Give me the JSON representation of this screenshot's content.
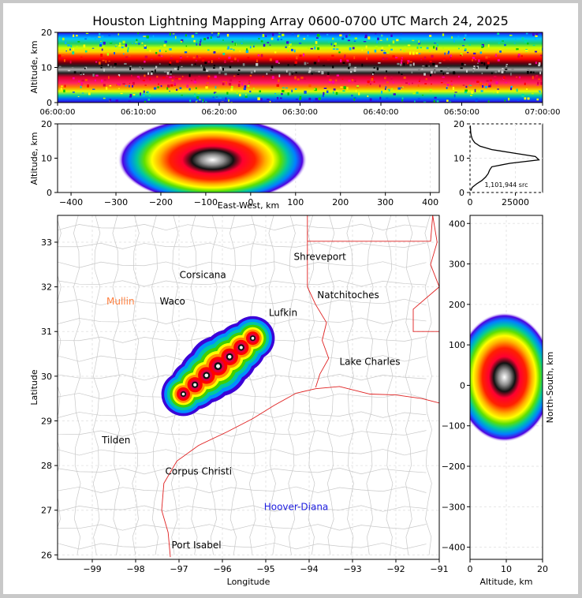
{
  "title": "Houston Lightning Mapping Array 0600-0700 UTC March 24, 2025",
  "colors": {
    "density_scale": [
      "#3b00d8",
      "#0050ff",
      "#00b4ff",
      "#00e0a0",
      "#00c800",
      "#b4ff00",
      "#ffff00",
      "#ffb400",
      "#ff5000",
      "#ff0000",
      "#e00040",
      "#ff00a0",
      "#000000",
      "#808080",
      "#c8c8c8",
      "#ffffff"
    ],
    "state_border": "#e02020",
    "county_border": "#c8c8c8",
    "frame": "#000000"
  },
  "chart_data": [
    {
      "panel": "time-height",
      "type": "heatmap",
      "ylabel": "Altitude, km",
      "ylim": [
        0,
        20
      ],
      "yticks": [
        "0",
        "10",
        "20"
      ],
      "xticks": [
        "06:00:00",
        "06:10:00",
        "06:20:00",
        "06:30:00",
        "06:40:00",
        "06:50:00",
        "07:00:00"
      ],
      "xlim": [
        "06:00:00",
        "07:00:00"
      ]
    },
    {
      "panel": "east-west-height",
      "type": "heatmap",
      "xlabel": "East-West, km",
      "ylabel": "Altitude, km",
      "xlim": [
        -430,
        420
      ],
      "ylim": [
        0,
        20
      ],
      "xticks": [
        "−400",
        "−300",
        "−200",
        "−100",
        "0",
        "100",
        "200",
        "300",
        "400"
      ],
      "yticks": [
        "0",
        "10",
        "20"
      ],
      "cluster": {
        "center_x": -85,
        "center_alt": 9.5
      }
    },
    {
      "panel": "altitude-histogram",
      "type": "line",
      "annotation": "1,101,944 src",
      "xlim": [
        0,
        40000
      ],
      "ylim": [
        0,
        20
      ],
      "xticks": [
        "0",
        "25000"
      ],
      "yticks": [
        "0",
        "10",
        "20"
      ],
      "profile": [
        {
          "alt": 0.5,
          "count": 400
        },
        {
          "alt": 1.5,
          "count": 1200
        },
        {
          "alt": 2.5,
          "count": 3600
        },
        {
          "alt": 3.5,
          "count": 6500
        },
        {
          "alt": 4.5,
          "count": 8600
        },
        {
          "alt": 5.5,
          "count": 10000
        },
        {
          "alt": 6.5,
          "count": 10800
        },
        {
          "alt": 7.5,
          "count": 12000
        },
        {
          "alt": 8.5,
          "count": 22000
        },
        {
          "alt": 9.5,
          "count": 38000
        },
        {
          "alt": 10.5,
          "count": 36000
        },
        {
          "alt": 11.5,
          "count": 24000
        },
        {
          "alt": 12.5,
          "count": 12000
        },
        {
          "alt": 13.5,
          "count": 5500
        },
        {
          "alt": 14.5,
          "count": 2600
        },
        {
          "alt": 15.5,
          "count": 1300
        },
        {
          "alt": 16.5,
          "count": 700
        },
        {
          "alt": 17.5,
          "count": 400
        },
        {
          "alt": 18.5,
          "count": 250
        },
        {
          "alt": 19.5,
          "count": 150
        }
      ]
    },
    {
      "panel": "plan-view",
      "type": "heatmap",
      "xlabel": "Longitude",
      "ylabel": "Latitude",
      "xlim": [
        -99.8,
        -91.0
      ],
      "ylim": [
        25.9,
        33.6
      ],
      "xticks": [
        "−99",
        "−98",
        "−97",
        "−96",
        "−95",
        "−94",
        "−93",
        "−92",
        "−91"
      ],
      "yticks": [
        "26",
        "27",
        "28",
        "29",
        "30",
        "31",
        "32",
        "33"
      ],
      "cities": [
        {
          "name": "Shreveport",
          "lon": -93.75,
          "lat": 32.6,
          "color": "#000000"
        },
        {
          "name": "Corsicana",
          "lon": -96.45,
          "lat": 32.2,
          "color": "#000000"
        },
        {
          "name": "Natchitoches",
          "lon": -93.1,
          "lat": 31.75,
          "color": "#000000"
        },
        {
          "name": "Mullin",
          "lon": -98.35,
          "lat": 31.6,
          "color": "#ff8040"
        },
        {
          "name": "Waco",
          "lon": -97.15,
          "lat": 31.6,
          "color": "#000000"
        },
        {
          "name": "Lufkin",
          "lon": -94.6,
          "lat": 31.35,
          "color": "#000000"
        },
        {
          "name": "Lake Charles",
          "lon": -92.6,
          "lat": 30.25,
          "color": "#000000"
        },
        {
          "name": "Tilden",
          "lon": -98.45,
          "lat": 28.5,
          "color": "#000000"
        },
        {
          "name": "Corpus Christi",
          "lon": -96.55,
          "lat": 27.8,
          "color": "#000000"
        },
        {
          "name": "Hoover-Diana",
          "lon": -94.3,
          "lat": 27.0,
          "color": "#2020e0"
        },
        {
          "name": "Port Isabel",
          "lon": -96.6,
          "lat": 26.15,
          "color": "#000000"
        }
      ],
      "storm_axis": {
        "from": {
          "lon": -96.9,
          "lat": 29.6
        },
        "to": {
          "lon": -95.3,
          "lat": 30.85
        }
      }
    },
    {
      "panel": "north-south-height",
      "type": "heatmap",
      "xlabel": "Altitude, km",
      "ylabel": "North-South, km",
      "xlim": [
        0,
        20
      ],
      "ylim": [
        -430,
        420
      ],
      "xticks": [
        "0",
        "10",
        "20"
      ],
      "yticks": [
        "−400",
        "−300",
        "−200",
        "−100",
        "0",
        "100",
        "200",
        "300",
        "400"
      ],
      "cluster": {
        "center_y": 20,
        "center_alt": 9.5
      }
    }
  ]
}
